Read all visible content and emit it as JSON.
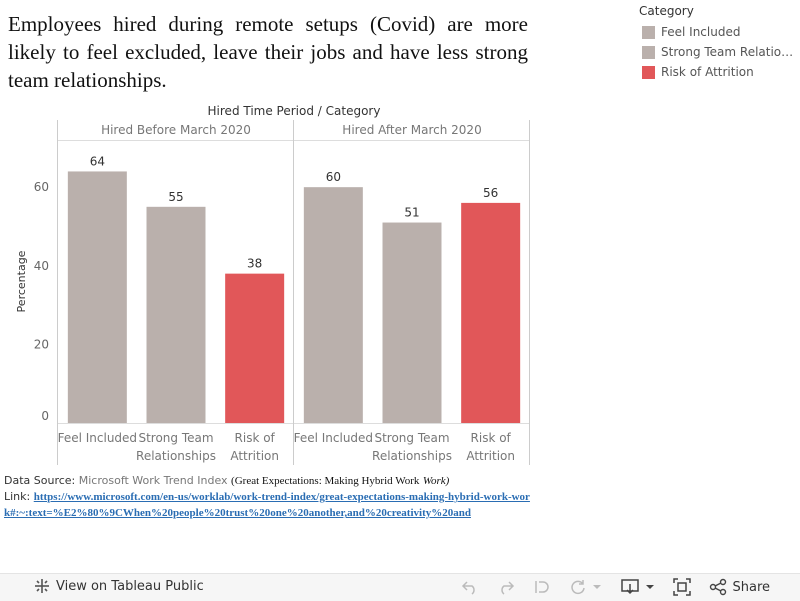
{
  "title": "Employees hired during remote setups (Covid) are more likely to feel excluded, leave their jobs and have less strong team relationships.",
  "legend": {
    "title": "Category",
    "items": [
      {
        "label": "Feel Included",
        "color": "#bab0ac"
      },
      {
        "label": "Strong Team Relationships",
        "color": "#bab0ac"
      },
      {
        "label": "Risk of Attrition",
        "color": "#e15759"
      }
    ]
  },
  "chart_data": {
    "type": "bar",
    "title": "Hired Time Period / Category",
    "ylabel": "Percentage",
    "ylim": [
      0,
      72
    ],
    "yticks": [
      0,
      20,
      40,
      60
    ],
    "categories": [
      "Feel Included",
      "Strong Team Relationships",
      "Risk of Attrition"
    ],
    "category_tick_labels": [
      [
        "Feel Included"
      ],
      [
        "Strong Team",
        "Relationships"
      ],
      [
        "Risk of",
        "Attrition"
      ]
    ],
    "colors": [
      "#bab0ac",
      "#bab0ac",
      "#e15759"
    ],
    "panels": [
      {
        "name": "Hired Before March 2020",
        "values": [
          64,
          55,
          38
        ]
      },
      {
        "name": "Hired After March 2020",
        "values": [
          60,
          51,
          56
        ]
      }
    ]
  },
  "source": {
    "prefix": "Data Source:",
    "name": "Microsoft Work Trend Index",
    "detail": "(Great Expectations: Making Hybrid Work",
    "detail_italic": "Work)",
    "link_prefix": "Link:",
    "link": "https://www.microsoft.com/en-us/worklab/work-trend-index/great-expectations-making-hybrid-work-work#:~:text=%E2%80%9CWhen%20people%20trust%20one%20another,and%20creativity%20and"
  },
  "toolbar": {
    "view_label": "View on Tableau Public",
    "share_label": "Share"
  }
}
